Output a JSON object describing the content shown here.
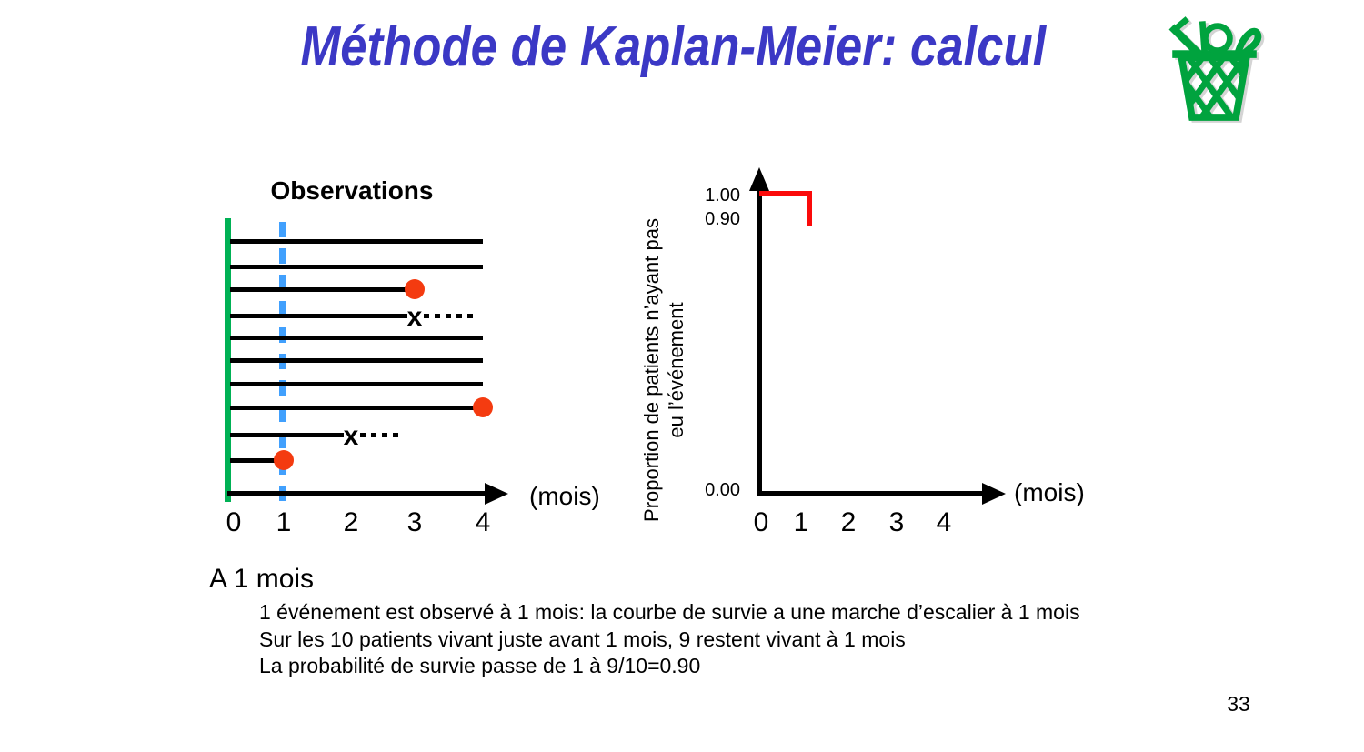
{
  "slide": {
    "title": "Méthode de Kaplan-Meier: calcul",
    "page_number": "33"
  },
  "colors": {
    "title_blue": "#3b38c5",
    "event_red": "#f43b10",
    "step_red": "#fb0a0a",
    "timeline_green": "#00b155",
    "icon_green": "#00a33e",
    "dashed_blue": "#41a0fd"
  },
  "observations": {
    "title": "Observations",
    "x_axis_label": "(mois)",
    "x_ticks": [
      "0",
      "1",
      "2",
      "3",
      "4"
    ],
    "dashed_line_month": 1,
    "patients": [
      {
        "follow_up_months": 4,
        "marker": "none"
      },
      {
        "follow_up_months": 4,
        "marker": "none"
      },
      {
        "follow_up_months": 3,
        "marker": "event"
      },
      {
        "follow_up_months": 3,
        "marker": "censored"
      },
      {
        "follow_up_months": 4,
        "marker": "none"
      },
      {
        "follow_up_months": 4,
        "marker": "none"
      },
      {
        "follow_up_months": 4,
        "marker": "none"
      },
      {
        "follow_up_months": 4,
        "marker": "event"
      },
      {
        "follow_up_months": 2,
        "marker": "censored"
      },
      {
        "follow_up_months": 1,
        "marker": "event"
      }
    ],
    "marker_legend": {
      "event": "red-dot",
      "censored": "x-dotted"
    }
  },
  "survival": {
    "y_axis_label_line1": "Proportion de patients n’ayant pas",
    "y_axis_label_line2": "eu l’événement",
    "y_ticks": [
      {
        "label": "1.00",
        "value": 1.0
      },
      {
        "label": "0.90",
        "value": 0.9
      },
      {
        "label": "0.00",
        "value": 0.0
      }
    ],
    "x_ticks": [
      "0",
      "1",
      "2",
      "3",
      "4"
    ],
    "x_axis_label": "(mois)",
    "step_points": [
      {
        "x": 0,
        "y": 1.0
      },
      {
        "x": 1,
        "y": 1.0
      },
      {
        "x": 1,
        "y": 0.9
      }
    ]
  },
  "annotation": {
    "heading": "A 1 mois",
    "lines": [
      "1 événement est observé à 1 mois: la courbe de survie a une marche d’escalier à 1 mois",
      "Sur les 10 patients vivant juste avant 1 mois, 9 restent vivant à 1 mois",
      "La probabilité de survie passe de 1 à 9/10=0.90"
    ]
  },
  "chart_data": [
    {
      "type": "line",
      "title": "Observations",
      "xlabel": "(mois)",
      "x_ticks": [
        0,
        1,
        2,
        3,
        4
      ],
      "xlim": [
        0,
        4.5
      ],
      "grid": false,
      "description": "Horizontal follow-up timelines for 10 patients; red dot = event, x + dotted tail = censored, green line = time origin, blue dashed line = 1 month",
      "series": [
        {
          "name": "patient-1",
          "start": 0,
          "end": 4,
          "terminal": "ongoing"
        },
        {
          "name": "patient-2",
          "start": 0,
          "end": 4,
          "terminal": "ongoing"
        },
        {
          "name": "patient-3",
          "start": 0,
          "end": 3,
          "terminal": "event"
        },
        {
          "name": "patient-4",
          "start": 0,
          "end": 3,
          "terminal": "censored"
        },
        {
          "name": "patient-5",
          "start": 0,
          "end": 4,
          "terminal": "ongoing"
        },
        {
          "name": "patient-6",
          "start": 0,
          "end": 4,
          "terminal": "ongoing"
        },
        {
          "name": "patient-7",
          "start": 0,
          "end": 4,
          "terminal": "ongoing"
        },
        {
          "name": "patient-8",
          "start": 0,
          "end": 4,
          "terminal": "event"
        },
        {
          "name": "patient-9",
          "start": 0,
          "end": 2,
          "terminal": "censored"
        },
        {
          "name": "patient-10",
          "start": 0,
          "end": 1,
          "terminal": "event"
        }
      ]
    },
    {
      "type": "line",
      "title": "",
      "xlabel": "(mois)",
      "ylabel": "Proportion de patients n’ayant pas eu l’événement",
      "x": [
        0,
        1,
        1
      ],
      "y": [
        1.0,
        1.0,
        0.9
      ],
      "x_ticks": [
        0,
        1,
        2,
        3,
        4
      ],
      "y_ticks": [
        0.0,
        0.9,
        1.0
      ],
      "xlim": [
        0,
        4.8
      ],
      "ylim": [
        0,
        1.05
      ],
      "grid": false,
      "legend": "none",
      "line_color": "#fb0a0a",
      "step": true
    }
  ]
}
